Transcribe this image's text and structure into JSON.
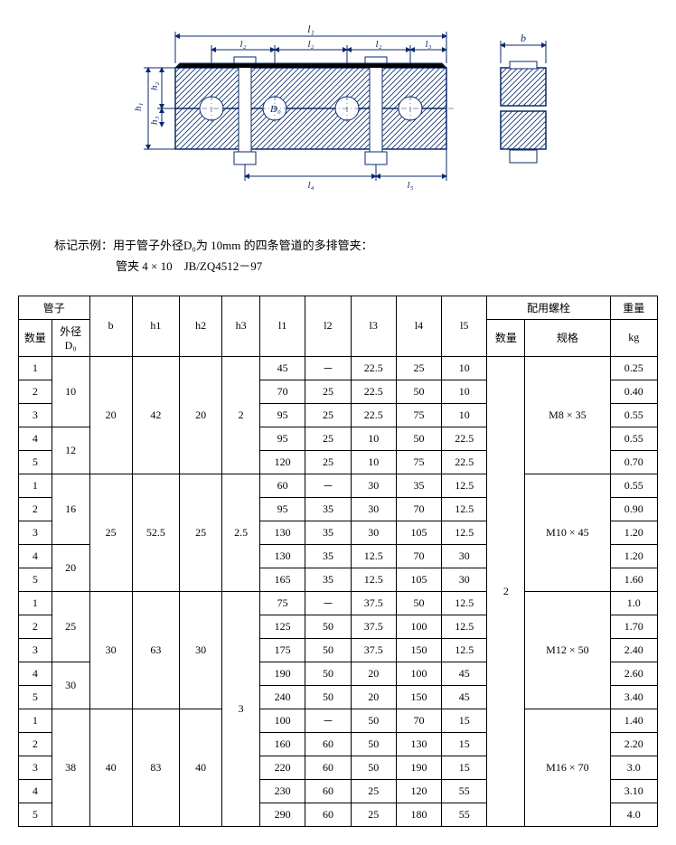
{
  "diagram": {
    "labels": {
      "l1": "l₁",
      "l2": "l₂",
      "l3": "l₃",
      "l4": "l₄",
      "l5": "l₅",
      "h1": "h₁",
      "h2": "h₂",
      "h3": "h₃",
      "D0": "D₀",
      "b": "b"
    },
    "hatch_color": "#0a2a6b",
    "line_color": "#0a2a6b"
  },
  "note": {
    "label": "标记示例：",
    "line1": "用于管子外径D₀为 10mm 的四条管道的多排管夹：",
    "line2": "管夹 4 × 10　JB/ZQ4512－97"
  },
  "table": {
    "headers": {
      "pipe": "管子",
      "qty": "数量",
      "d0_l1": "外径",
      "d0_l2": "D₀",
      "b": "b",
      "h1": "h1",
      "h2": "h2",
      "h3": "h3",
      "l1": "l1",
      "l2": "l2",
      "l3": "l3",
      "l4": "l4",
      "l5": "l5",
      "bolt": "配用螺栓",
      "bolt_qty": "数量",
      "bolt_spec": "规格",
      "weight": "重量",
      "weight_unit": "kg"
    },
    "groups": [
      {
        "b": "20",
        "h1": "42",
        "h2": "20",
        "h3_span": 5,
        "h3": "2",
        "bolt_spec": "M8 × 35",
        "d0_groups": [
          {
            "d0": "10",
            "d0_span": 3
          },
          {
            "d0": "12",
            "d0_span": 2
          }
        ],
        "rows": [
          {
            "q": "1",
            "l1": "45",
            "l2": "－",
            "l3": "22.5",
            "l4": "25",
            "l5": "10",
            "wt": "0.25"
          },
          {
            "q": "2",
            "l1": "70",
            "l2": "25",
            "l3": "22.5",
            "l4": "50",
            "l5": "10",
            "wt": "0.40"
          },
          {
            "q": "3",
            "l1": "95",
            "l2": "25",
            "l3": "22.5",
            "l4": "75",
            "l5": "10",
            "wt": "0.55"
          },
          {
            "q": "4",
            "l1": "95",
            "l2": "25",
            "l3": "10",
            "l4": "50",
            "l5": "22.5",
            "wt": "0.55"
          },
          {
            "q": "5",
            "l1": "120",
            "l2": "25",
            "l3": "10",
            "l4": "75",
            "l5": "22.5",
            "wt": "0.70"
          }
        ]
      },
      {
        "b": "25",
        "h1": "52.5",
        "h2": "25",
        "h3_span": 5,
        "h3": "2.5",
        "bolt_spec": "M10 × 45",
        "d0_groups": [
          {
            "d0": "16",
            "d0_span": 3
          },
          {
            "d0": "20",
            "d0_span": 2
          }
        ],
        "rows": [
          {
            "q": "1",
            "l1": "60",
            "l2": "－",
            "l3": "30",
            "l4": "35",
            "l5": "12.5",
            "wt": "0.55"
          },
          {
            "q": "2",
            "l1": "95",
            "l2": "35",
            "l3": "30",
            "l4": "70",
            "l5": "12.5",
            "wt": "0.90"
          },
          {
            "q": "3",
            "l1": "130",
            "l2": "35",
            "l3": "30",
            "l4": "105",
            "l5": "12.5",
            "wt": "1.20"
          },
          {
            "q": "4",
            "l1": "130",
            "l2": "35",
            "l3": "12.5",
            "l4": "70",
            "l5": "30",
            "wt": "1.20"
          },
          {
            "q": "5",
            "l1": "165",
            "l2": "35",
            "l3": "12.5",
            "l4": "105",
            "l5": "30",
            "wt": "1.60"
          }
        ]
      },
      {
        "b": "30",
        "h1": "63",
        "h2": "30",
        "h3_span": 10,
        "h3": "3",
        "bolt_spec": "M12 × 50",
        "d0_groups": [
          {
            "d0": "25",
            "d0_span": 3
          },
          {
            "d0": "30",
            "d0_span": 2
          }
        ],
        "rows": [
          {
            "q": "1",
            "l1": "75",
            "l2": "－",
            "l3": "37.5",
            "l4": "50",
            "l5": "12.5",
            "wt": "1.0"
          },
          {
            "q": "2",
            "l1": "125",
            "l2": "50",
            "l3": "37.5",
            "l4": "100",
            "l5": "12.5",
            "wt": "1.70"
          },
          {
            "q": "3",
            "l1": "175",
            "l2": "50",
            "l3": "37.5",
            "l4": "150",
            "l5": "12.5",
            "wt": "2.40"
          },
          {
            "q": "4",
            "l1": "190",
            "l2": "50",
            "l3": "20",
            "l4": "100",
            "l5": "45",
            "wt": "2.60"
          },
          {
            "q": "5",
            "l1": "240",
            "l2": "50",
            "l3": "20",
            "l4": "150",
            "l5": "45",
            "wt": "3.40"
          }
        ]
      },
      {
        "b": "40",
        "h1": "83",
        "h2": "40",
        "h3_span": 0,
        "h3": "",
        "bolt_spec": "M16 × 70",
        "d0_groups": [
          {
            "d0": "38",
            "d0_span": 5
          }
        ],
        "rows": [
          {
            "q": "1",
            "l1": "100",
            "l2": "－",
            "l3": "50",
            "l4": "70",
            "l5": "15",
            "wt": "1.40"
          },
          {
            "q": "2",
            "l1": "160",
            "l2": "60",
            "l3": "50",
            "l4": "130",
            "l5": "15",
            "wt": "2.20"
          },
          {
            "q": "3",
            "l1": "220",
            "l2": "60",
            "l3": "50",
            "l4": "190",
            "l5": "15",
            "wt": "3.0"
          },
          {
            "q": "4",
            "l1": "230",
            "l2": "60",
            "l3": "25",
            "l4": "120",
            "l5": "55",
            "wt": "3.10"
          },
          {
            "q": "5",
            "l1": "290",
            "l2": "60",
            "l3": "25",
            "l4": "180",
            "l5": "55",
            "wt": "4.0"
          }
        ]
      }
    ],
    "bolt_qty_all": "2"
  }
}
